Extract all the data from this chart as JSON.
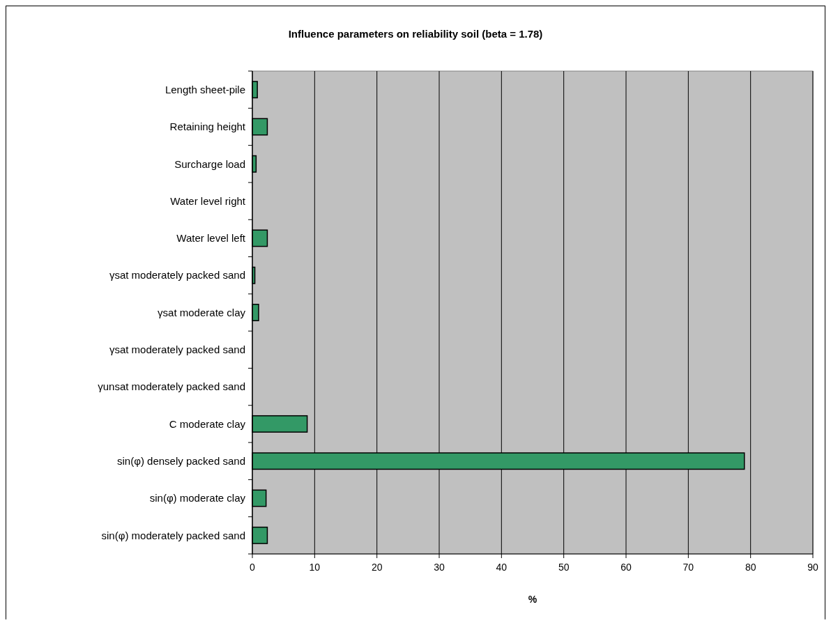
{
  "chart_data": {
    "type": "bar",
    "orientation": "horizontal",
    "title": "Influence parameters on reliability soil (beta = 1.78)",
    "xlabel": "%",
    "categories": [
      "Length sheet-pile",
      "Retaining height",
      "Surcharge load",
      "Water level right",
      "Water level left",
      "γsat moderately packed sand",
      "γsat moderate clay",
      "γsat moderately packed sand",
      "γunsat moderately packed sand",
      "C moderate clay",
      "sin(φ) densely packed sand",
      "sin(φ) moderate clay",
      "sin(φ) moderately packed sand"
    ],
    "values": [
      0.8,
      2.4,
      0.6,
      0,
      2.4,
      0.4,
      1.0,
      0,
      0,
      8.8,
      79.0,
      2.2,
      2.4
    ],
    "color": "#339966",
    "xlim": [
      0,
      90
    ],
    "xticks": [
      0,
      10,
      20,
      30,
      40,
      50,
      60,
      70,
      80,
      90
    ],
    "grid": "x"
  }
}
